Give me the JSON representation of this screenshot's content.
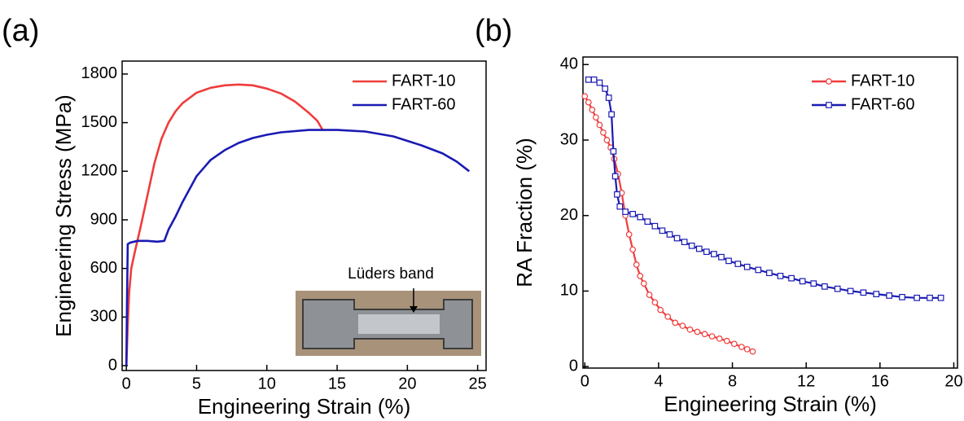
{
  "chart_data": [
    {
      "type": "line",
      "panel": "(a)",
      "x_label": "Engineering Strain (%)",
      "y_label": "Engineering Stress (MPa)",
      "xlim": [
        -0.3,
        25.6
      ],
      "ylim": [
        -30,
        1880
      ],
      "xticks": [
        0,
        5,
        10,
        15,
        20,
        25
      ],
      "yticks": [
        0,
        300,
        600,
        900,
        1200,
        1500,
        1800
      ],
      "legend": "upper right",
      "annotation": "Lüders band",
      "series": [
        {
          "name": "FART-10",
          "color": "#f03c3c",
          "x": [
            0,
            0.1,
            0.2,
            0.35,
            0.6,
            1,
            1.5,
            2,
            2.5,
            3,
            3.5,
            4,
            5,
            6,
            7,
            8,
            9,
            10,
            11,
            12,
            13,
            13.6,
            14
          ],
          "values": [
            0,
            250,
            450,
            600,
            700,
            850,
            1050,
            1250,
            1400,
            1500,
            1570,
            1620,
            1685,
            1715,
            1730,
            1735,
            1730,
            1710,
            1680,
            1630,
            1560,
            1510,
            1450
          ]
        },
        {
          "name": "FART-60",
          "color": "#1a1ab4",
          "x": [
            0,
            0.05,
            0.1,
            0.3,
            0.8,
            1.5,
            2.2,
            2.7,
            3,
            3.5,
            4,
            5,
            6,
            7,
            8,
            9,
            10,
            11,
            13,
            15,
            17,
            19,
            21,
            22.5,
            23.5,
            24.4
          ],
          "values": [
            0,
            400,
            750,
            760,
            770,
            770,
            765,
            770,
            840,
            920,
            1010,
            1170,
            1270,
            1330,
            1375,
            1405,
            1425,
            1440,
            1455,
            1455,
            1445,
            1415,
            1360,
            1310,
            1260,
            1200
          ]
        }
      ]
    },
    {
      "type": "line",
      "panel": "(b)",
      "x_label": "Engineering Strain (%)",
      "y_label": "RA Fraction (%)",
      "xlim": [
        -0.1,
        20.2
      ],
      "ylim": [
        -0.2,
        41
      ],
      "xticks": [
        0,
        4,
        8,
        12,
        16,
        20
      ],
      "yticks": [
        0,
        10,
        20,
        30,
        40
      ],
      "legend": "upper right",
      "series": [
        {
          "name": "FART-10",
          "color": "#f03c3c",
          "marker": "circle",
          "x": [
            0,
            0.2,
            0.4,
            0.6,
            0.8,
            1,
            1.2,
            1.4,
            1.6,
            1.8,
            2,
            2.2,
            2.4,
            2.6,
            2.8,
            3,
            3.2,
            3.5,
            3.8,
            4.1,
            4.5,
            4.9,
            5.3,
            5.7,
            6.1,
            6.5,
            6.9,
            7.3,
            7.7,
            8.1,
            8.5,
            8.8,
            9.1
          ],
          "values": [
            35.8,
            35,
            34,
            33,
            32,
            31,
            30,
            29,
            27.5,
            25.5,
            23,
            20,
            17.5,
            15.5,
            13.5,
            12,
            11,
            9.5,
            8.5,
            7.5,
            6.6,
            5.8,
            5.4,
            4.9,
            4.6,
            4.3,
            4,
            3.7,
            3.4,
            3,
            2.6,
            2.3,
            2
          ]
        },
        {
          "name": "FART-60",
          "color": "#1a1ab4",
          "marker": "square",
          "x": [
            0.2,
            0.5,
            0.8,
            1.1,
            1.3,
            1.45,
            1.55,
            1.65,
            1.75,
            1.9,
            2.2,
            2.6,
            3,
            3.4,
            3.8,
            4.2,
            4.6,
            5,
            5.4,
            5.8,
            6.2,
            6.6,
            7,
            7.4,
            7.8,
            8.3,
            8.8,
            9.4,
            10,
            10.6,
            11.2,
            11.8,
            12.4,
            13,
            13.7,
            14.4,
            15.1,
            15.8,
            16.5,
            17.2,
            18,
            18.7,
            19.3
          ],
          "values": [
            38,
            38,
            37.6,
            36.8,
            35.6,
            33.4,
            28.5,
            25.2,
            22.8,
            21.2,
            20.5,
            20.2,
            19.8,
            19.2,
            18.6,
            18,
            17.5,
            17,
            16.5,
            16,
            15.6,
            15.2,
            14.9,
            14.5,
            14,
            13.6,
            13.2,
            12.8,
            12.4,
            12,
            11.7,
            11.3,
            11,
            10.6,
            10.3,
            10,
            9.8,
            9.6,
            9.4,
            9.2,
            9.1,
            9.1,
            9.1
          ]
        }
      ]
    }
  ]
}
